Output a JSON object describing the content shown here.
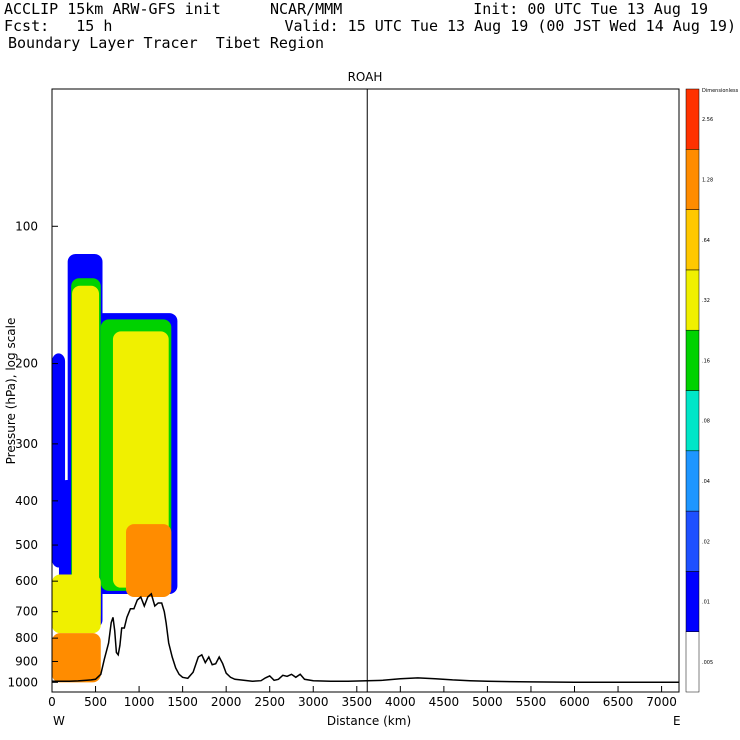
{
  "header": {
    "line1_left": "ACCLIP 15km ARW-GFS init",
    "line1_center": "NCAR/MMM",
    "line1_right": "Init: 00 UTC Tue 13 Aug 19",
    "line2_left": "Fcst:   15 h",
    "line2_right": "Valid: 15 UTC Tue 13 Aug 19 (00 JST Wed 14 Aug 19)",
    "line3": "Boundary Layer Tracer  Tibet Region"
  },
  "chart_data": {
    "type": "heatmap",
    "title": "ROAH",
    "xlabel": "Distance (km)",
    "ylabel": "Pressure (hPa), log scale",
    "x_ticks": [
      0,
      500,
      1000,
      1500,
      2000,
      2500,
      3000,
      3500,
      4000,
      4500,
      5000,
      5500,
      6000,
      6500,
      7000
    ],
    "y_ticks": [
      100,
      200,
      300,
      400,
      500,
      600,
      700,
      800,
      900,
      1000
    ],
    "xlim": [
      0,
      7200
    ],
    "ylim": [
      1050,
      50
    ],
    "y_scale": "log",
    "west_label": "W",
    "east_label": "E",
    "vertical_marker_km": 3620,
    "colorbar": {
      "title": "Dimensionless",
      "levels": [
        ".005",
        ".01",
        ".02",
        ".04",
        ".08",
        ".16",
        ".32",
        ".64",
        "1.28",
        "2.56"
      ],
      "colors": [
        "#ffffff",
        "#0000ff",
        "#1e50ff",
        "#1e96ff",
        "#00e6c8",
        "#00d200",
        "#f0f000",
        "#ffc800",
        "#ff8c00",
        "#ff3200"
      ]
    },
    "terrain": {
      "distance_km": [
        0,
        100,
        200,
        300,
        400,
        450,
        500,
        560,
        600,
        650,
        680,
        700,
        720,
        740,
        760,
        780,
        800,
        830,
        860,
        900,
        940,
        980,
        1020,
        1060,
        1100,
        1140,
        1180,
        1220,
        1260,
        1290,
        1310,
        1340,
        1380,
        1420,
        1460,
        1500,
        1560,
        1620,
        1680,
        1720,
        1760,
        1800,
        1840,
        1880,
        1920,
        1960,
        2000,
        2050,
        2100,
        2200,
        2300,
        2400,
        2450,
        2500,
        2550,
        2600,
        2650,
        2700,
        2750,
        2800,
        2850,
        2900,
        3000,
        3200,
        3400,
        3620,
        3800,
        4000,
        4200,
        4400,
        4600,
        4800,
        5000,
        5500,
        6000,
        6500,
        7000,
        7200
      ],
      "pressure_hPa": [
        995,
        995,
        995,
        993,
        990,
        988,
        985,
        960,
        890,
        820,
        740,
        720,
        770,
        860,
        870,
        830,
        760,
        760,
        720,
        690,
        690,
        660,
        650,
        680,
        650,
        640,
        680,
        670,
        670,
        700,
        740,
        820,
        880,
        930,
        960,
        975,
        980,
        950,
        880,
        870,
        905,
        880,
        915,
        910,
        880,
        910,
        955,
        975,
        985,
        990,
        995,
        992,
        978,
        968,
        990,
        985,
        965,
        970,
        960,
        975,
        960,
        985,
        992,
        995,
        995,
        992,
        990,
        982,
        978,
        982,
        988,
        992,
        995,
        998,
        1000,
        1000,
        1000,
        1000
      ]
    },
    "tracer_fields": [
      {
        "level": ".01",
        "x_range_km": [
          0,
          150
        ],
        "p_range_hPa": [
          190,
          560
        ]
      },
      {
        "level": ".01",
        "x_range_km": [
          80,
          300
        ],
        "p_range_hPa": [
          360,
          700
        ]
      },
      {
        "level": ".01",
        "x_range_km": [
          180,
          580
        ],
        "p_range_hPa": [
          115,
          760
        ]
      },
      {
        "level": ".01",
        "x_range_km": [
          500,
          1440
        ],
        "p_range_hPa": [
          155,
          640
        ]
      },
      {
        "level": ".16",
        "x_range_km": [
          220,
          560
        ],
        "p_range_hPa": [
          130,
          740
        ]
      },
      {
        "level": ".16",
        "x_range_km": [
          560,
          1370
        ],
        "p_range_hPa": [
          160,
          630
        ]
      },
      {
        "level": ".32",
        "x_range_km": [
          230,
          540
        ],
        "p_range_hPa": [
          135,
          700
        ]
      },
      {
        "level": ".32",
        "x_range_km": [
          700,
          1340
        ],
        "p_range_hPa": [
          170,
          620
        ]
      },
      {
        "level": ".32",
        "x_range_km": [
          0,
          560
        ],
        "p_range_hPa": [
          580,
          780
        ]
      },
      {
        "level": "1.28",
        "x_range_km": [
          0,
          560
        ],
        "p_range_hPa": [
          780,
          1000
        ]
      },
      {
        "level": "1.28",
        "x_range_km": [
          850,
          1370
        ],
        "p_range_hPa": [
          450,
          650
        ]
      }
    ]
  }
}
